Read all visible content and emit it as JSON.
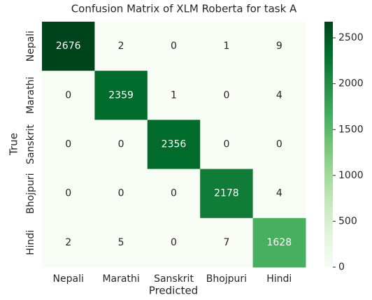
{
  "chart_data": {
    "type": "heatmap",
    "title": "Confusion Matrix of XLM Roberta for task A",
    "xlabel": "Predicted",
    "ylabel": "True",
    "x": [
      "Nepali",
      "Marathi",
      "Sanskrit",
      "Bhojpuri",
      "Hindi"
    ],
    "y": [
      "Nepali",
      "Marathi",
      "Sanskrit",
      "Bhojpuri",
      "Hindi"
    ],
    "values": [
      [
        2676,
        2,
        0,
        1,
        9
      ],
      [
        0,
        2359,
        1,
        0,
        4
      ],
      [
        0,
        0,
        2356,
        0,
        0
      ],
      [
        0,
        0,
        0,
        2178,
        4
      ],
      [
        2,
        5,
        0,
        7,
        1628
      ]
    ],
    "colorscale": [
      "#f7fcf5",
      "#e5f5e0",
      "#c7e9c0",
      "#a1d99b",
      "#74c476",
      "#41ab5d",
      "#238b45",
      "#006d2c",
      "#00441b"
    ],
    "clim": [
      0,
      2676
    ],
    "cticks": [
      0,
      500,
      1000,
      1500,
      2000,
      2500
    ]
  }
}
